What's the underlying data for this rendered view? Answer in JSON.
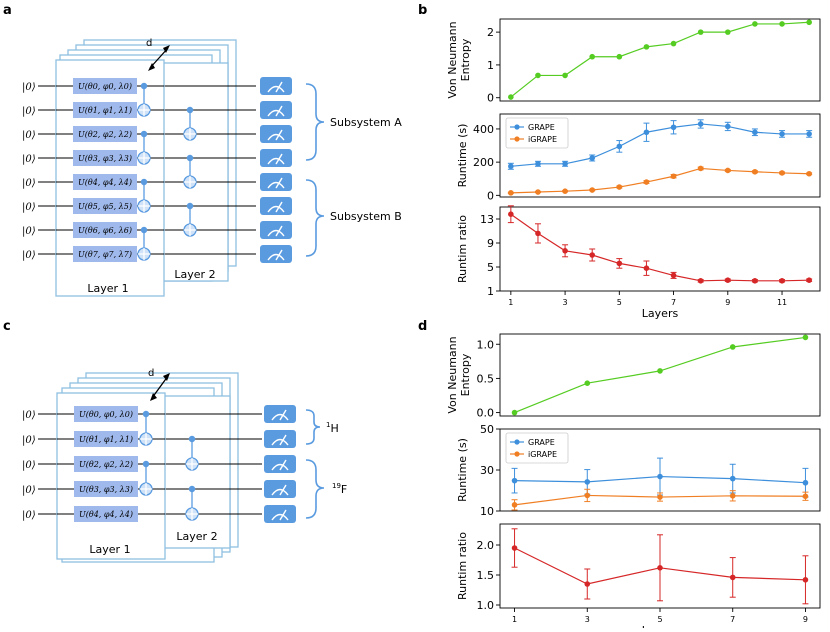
{
  "panel_labels": [
    "a",
    "b",
    "c",
    "d"
  ],
  "circuit_a": {
    "ket": "|0⟩",
    "gates": [
      "U(θ0, φ0, λ0)",
      "U(θ1, φ1, λ1)",
      "U(θ2, φ2, λ2)",
      "U(θ3, φ3, λ3)",
      "U(θ4, φ4, λ4)",
      "U(θ5, φ5, λ5)",
      "U(θ6, φ6, λ6)",
      "U(θ7, φ7, λ7)"
    ],
    "layer1": "Layer 1",
    "layer2": "Layer 2",
    "depth": "d",
    "subsystems": [
      "Subsystem A",
      "Subsystem B"
    ]
  },
  "circuit_c": {
    "ket": "|0⟩",
    "gates": [
      "U(θ0, φ0, λ0)",
      "U(θ1, φ1, λ1)",
      "U(θ2, φ2, λ2)",
      "U(θ3, φ3, λ3)",
      "U(θ4, φ4, λ4)"
    ],
    "layer1": "Layer 1",
    "layer2": "Layer 2",
    "depth": "d",
    "nuclei": [
      {
        "sup": "1",
        "sym": "H"
      },
      {
        "sup": "19",
        "sym": "F"
      }
    ]
  },
  "colors": {
    "green": "#55cc22",
    "blue": "#3d8fdc",
    "orange": "#f07f24",
    "red": "#d62728",
    "gate": "#9fb9ec",
    "frame": "#8fbfe0",
    "accent": "#5a9be0"
  },
  "chart_data": [
    {
      "id": "b_top",
      "type": "line",
      "ylabel": "Von Neumann Entropy",
      "x": [
        1,
        2,
        3,
        4,
        5,
        6,
        7,
        8,
        9,
        10,
        11,
        12
      ],
      "xlim": [
        0.6,
        12.4
      ],
      "ylim": [
        -0.1,
        2.4
      ],
      "yticks": [
        0,
        1,
        2
      ],
      "xticks": [],
      "series": [
        {
          "name": "entropy",
          "color": "green",
          "values": [
            0.02,
            0.68,
            0.68,
            1.25,
            1.25,
            1.55,
            1.65,
            2.0,
            2.0,
            2.25,
            2.25,
            2.3
          ]
        }
      ]
    },
    {
      "id": "b_mid",
      "type": "line",
      "ylabel": "Runtime (s)",
      "x": [
        1,
        2,
        3,
        4,
        5,
        6,
        7,
        8,
        9,
        10,
        11,
        12
      ],
      "xlim": [
        0.6,
        12.4
      ],
      "ylim": [
        -10,
        490
      ],
      "yticks": [
        0,
        200,
        400
      ],
      "xticks": [],
      "legend": "top-left",
      "series": [
        {
          "name": "GRAPE",
          "color": "blue",
          "values": [
            175,
            190,
            190,
            225,
            295,
            380,
            410,
            430,
            415,
            380,
            370,
            370
          ],
          "err": [
            18,
            15,
            15,
            18,
            35,
            55,
            40,
            25,
            25,
            20,
            20,
            20
          ]
        },
        {
          "name": "iGRAPE",
          "color": "orange",
          "values": [
            15,
            20,
            25,
            32,
            50,
            80,
            115,
            162,
            150,
            142,
            135,
            130
          ],
          "err": [
            3,
            3,
            3,
            4,
            6,
            8,
            10,
            8,
            6,
            6,
            6,
            5
          ]
        }
      ]
    },
    {
      "id": "b_bot",
      "type": "line",
      "ylabel": "Runtim ratio",
      "xlabel": "Layers",
      "x": [
        1,
        2,
        3,
        4,
        5,
        6,
        7,
        8,
        9,
        10,
        11,
        12
      ],
      "xlim": [
        0.6,
        12.4
      ],
      "ylim": [
        1,
        15
      ],
      "yticks": [
        1,
        5,
        9,
        13
      ],
      "xticks": [
        1,
        3,
        5,
        7,
        9,
        11
      ],
      "series": [
        {
          "name": "ratio",
          "color": "red",
          "values": [
            13.8,
            10.6,
            7.7,
            7.0,
            5.6,
            4.8,
            3.6,
            2.7,
            2.8,
            2.7,
            2.7,
            2.8
          ],
          "err": [
            1.4,
            1.6,
            1.0,
            1.0,
            0.8,
            1.2,
            0.5,
            0.2,
            0.2,
            0.2,
            0.2,
            0.2
          ]
        }
      ]
    },
    {
      "id": "d_top",
      "type": "line",
      "ylabel": "Von Neumann Entropy",
      "x": [
        1,
        3,
        5,
        7,
        9
      ],
      "xlim": [
        0.6,
        9.4
      ],
      "ylim": [
        -0.05,
        1.15
      ],
      "yticks": [
        0.0,
        0.5,
        1.0
      ],
      "tickfmt": 1,
      "xticks": [],
      "series": [
        {
          "name": "entropy",
          "color": "green",
          "values": [
            0.0,
            0.43,
            0.61,
            0.96,
            1.1
          ]
        }
      ]
    },
    {
      "id": "d_mid",
      "type": "line",
      "ylabel": "Runtime (s)",
      "x": [
        1,
        3,
        5,
        7,
        9
      ],
      "xlim": [
        0.6,
        9.4
      ],
      "ylim": [
        10,
        50
      ],
      "yticks": [
        10,
        30,
        50
      ],
      "xticks": [],
      "legend": "top-left",
      "series": [
        {
          "name": "GRAPE",
          "color": "blue",
          "values": [
            24.8,
            24.2,
            26.8,
            25.8,
            23.8
          ],
          "err": [
            6,
            6,
            9,
            7,
            7
          ]
        },
        {
          "name": "iGRAPE",
          "color": "orange",
          "values": [
            13,
            17.6,
            16.8,
            17.4,
            17.2
          ],
          "err": [
            2.5,
            3,
            2,
            2.5,
            2
          ]
        }
      ]
    },
    {
      "id": "d_bot",
      "type": "line",
      "ylabel": "Runtim ratio",
      "xlabel": "Layers",
      "x": [
        1,
        3,
        5,
        7,
        9
      ],
      "xlim": [
        0.6,
        9.4
      ],
      "ylim": [
        0.95,
        2.35
      ],
      "yticks": [
        1.0,
        1.5,
        2.0
      ],
      "tickfmt": 1,
      "xticks": [
        1,
        3,
        5,
        7,
        9
      ],
      "series": [
        {
          "name": "ratio",
          "color": "red",
          "values": [
            1.95,
            1.35,
            1.62,
            1.46,
            1.42
          ],
          "err": [
            0.32,
            0.25,
            0.55,
            0.33,
            0.4
          ]
        }
      ]
    }
  ]
}
